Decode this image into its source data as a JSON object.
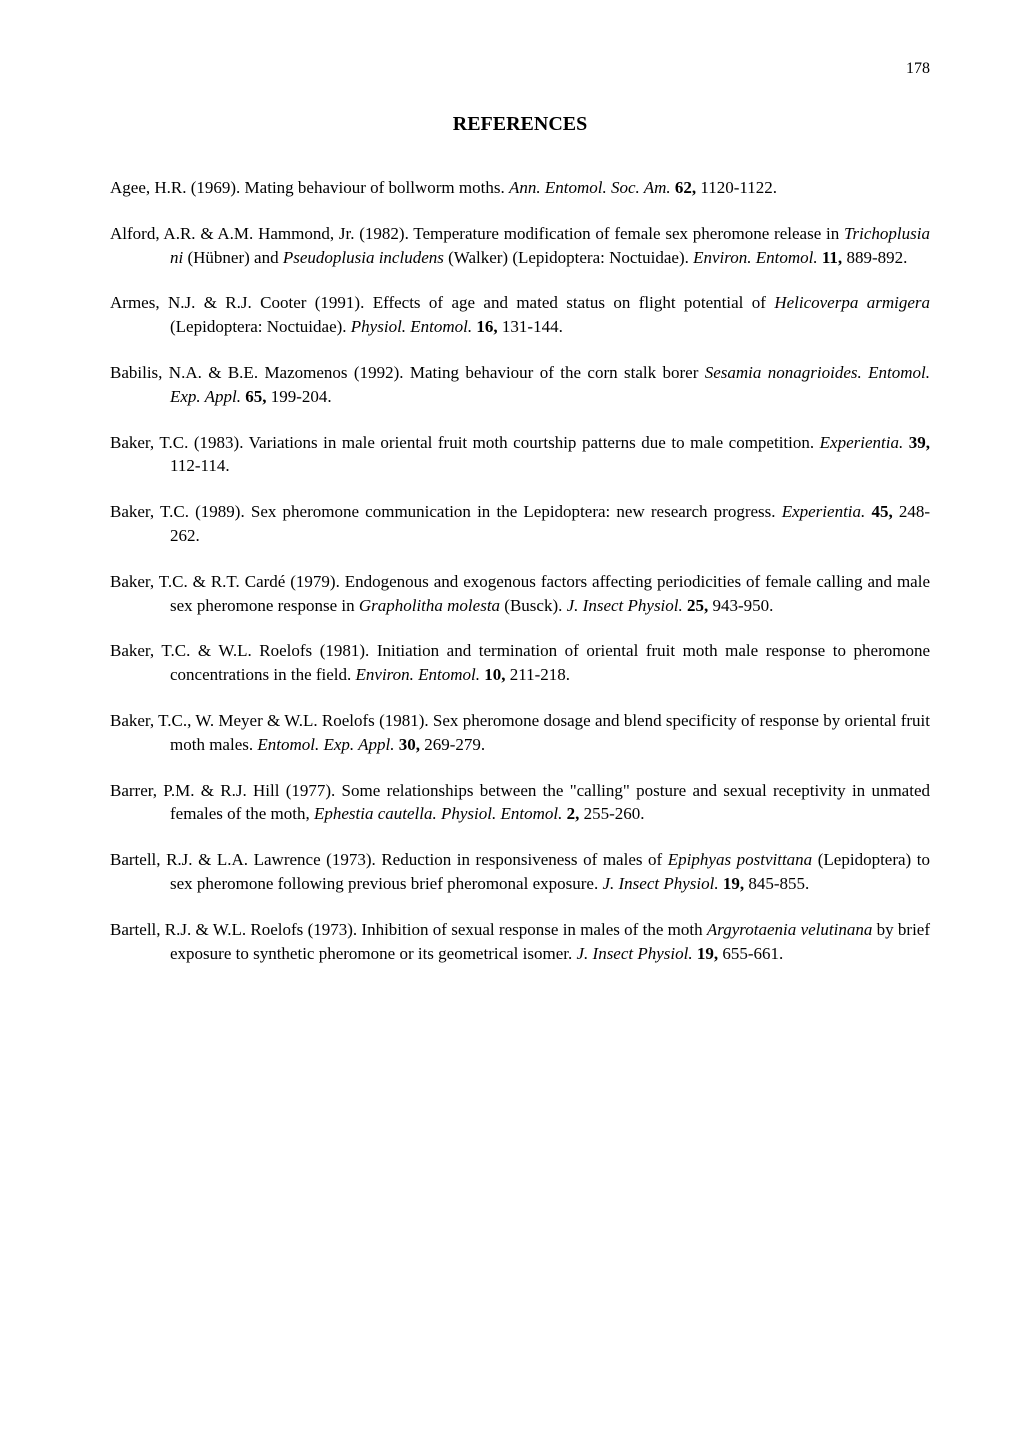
{
  "page_number": "178",
  "title": "REFERENCES",
  "references": [
    {
      "segments": [
        {
          "text": "Agee, H.R. (1969).  Mating  behaviour   of bollworm moths.  ",
          "style": ""
        },
        {
          "text": "Ann. Entomol. Soc. Am.",
          "style": "italic"
        },
        {
          "text": " ",
          "style": ""
        },
        {
          "text": "62,",
          "style": "bold"
        },
        {
          "text": " 1120-1122.",
          "style": ""
        }
      ]
    },
    {
      "segments": [
        {
          "text": "Alford, A.R. & A.M. Hammond, Jr. (1982).   Temperature   modification of female sex pheromone release in  ",
          "style": ""
        },
        {
          "text": "Trichoplusia  ni",
          "style": "italic"
        },
        {
          "text": " (Hübner)  and   ",
          "style": ""
        },
        {
          "text": "Pseudoplusia includens",
          "style": "italic"
        },
        {
          "text": " (Walker) (Lepidoptera: Noctuidae).  ",
          "style": ""
        },
        {
          "text": "Environ. Entomol.",
          "style": "italic"
        },
        {
          "text": " ",
          "style": ""
        },
        {
          "text": "11,",
          "style": "bold"
        },
        {
          "text": " 889-892.",
          "style": ""
        }
      ]
    },
    {
      "segments": [
        {
          "text": "Armes, N.J. & R.J. Cooter (1991).   Effects  of age and mated status on flight potential of ",
          "style": ""
        },
        {
          "text": "Helicoverpa armigera",
          "style": "italic"
        },
        {
          "text": " (Lepidoptera:  Noctuidae).   ",
          "style": ""
        },
        {
          "text": "Physiol. Entomol.",
          "style": "italic"
        },
        {
          "text": " ",
          "style": ""
        },
        {
          "text": "16,",
          "style": "bold"
        },
        {
          "text": " 131-144.",
          "style": ""
        }
      ]
    },
    {
      "segments": [
        {
          "text": "Babilis,  N.A.  &  B.E.  Mazomenos  (1992).  Mating behaviour of the corn stalk borer ",
          "style": ""
        },
        {
          "text": "Sesamia nonagrioides.  Entomol. Exp. Appl.",
          "style": "italic"
        },
        {
          "text": " ",
          "style": ""
        },
        {
          "text": "65,",
          "style": "bold"
        },
        {
          "text": " 199-204.",
          "style": ""
        }
      ]
    },
    {
      "segments": [
        {
          "text": "Baker, T.C. (1983).  Variations  in  male  oriental  fruit moth courtship patterns due to male competition.  ",
          "style": ""
        },
        {
          "text": "Experientia.",
          "style": "italic"
        },
        {
          "text": " ",
          "style": ""
        },
        {
          "text": "39,",
          "style": "bold"
        },
        {
          "text": " 112-114.",
          "style": ""
        }
      ]
    },
    {
      "segments": [
        {
          "text": "Baker, T.C. (1989).  Sex pheromone communication  in the Lepidoptera: new research progress.  ",
          "style": ""
        },
        {
          "text": "Experientia.",
          "style": "italic"
        },
        {
          "text": " ",
          "style": ""
        },
        {
          "text": "45,",
          "style": "bold"
        },
        {
          "text": " 248-262.",
          "style": ""
        }
      ]
    },
    {
      "segments": [
        {
          "text": "Baker,  T.C.  &  R.T.  Cardé  (1979).   Endogenous  and  exogenous  factors  affecting periodicities of female calling and male sex pheromone response in ",
          "style": ""
        },
        {
          "text": "Grapholitha molesta",
          "style": "italic"
        },
        {
          "text": " (Busck). ",
          "style": ""
        },
        {
          "text": "J. Insect Physiol.",
          "style": "italic"
        },
        {
          "text": " ",
          "style": ""
        },
        {
          "text": "25,",
          "style": "bold"
        },
        {
          "text": " 943-950.",
          "style": ""
        }
      ]
    },
    {
      "segments": [
        {
          "text": "Baker, T.C.  &  W.L. Roelofs  (1981).  Initiation and termination of oriental fruit moth male response to pheromone concentrations in the field.  ",
          "style": ""
        },
        {
          "text": "Environ. Entomol.",
          "style": "italic"
        },
        {
          "text": " ",
          "style": ""
        },
        {
          "text": "10,",
          "style": "bold"
        },
        {
          "text": " 211-218.",
          "style": ""
        }
      ]
    },
    {
      "segments": [
        {
          "text": "Baker, T.C., W. Meyer  &  W.L. Roelofs  (1981).   Sex  pheromone  dosage and blend specificity of response by oriental fruit moth  males.   ",
          "style": ""
        },
        {
          "text": "Entomol.  Exp.  Appl.",
          "style": "italic"
        },
        {
          "text": " ",
          "style": ""
        },
        {
          "text": "30,",
          "style": "bold"
        },
        {
          "text": " 269-279.",
          "style": ""
        }
      ]
    },
    {
      "segments": [
        {
          "text": "Barrer, P.M. & R.J. Hill (1977).  Some relationships between the \"calling\" posture and sexual receptivity in unmated females of the  moth, ",
          "style": ""
        },
        {
          "text": "Ephestia cautella.  Physiol. Entomol.",
          "style": "italic"
        },
        {
          "text": " ",
          "style": ""
        },
        {
          "text": "2,",
          "style": "bold"
        },
        {
          "text": " 255-260.",
          "style": ""
        }
      ]
    },
    {
      "segments": [
        {
          "text": "Bartell,  R.J.  &  L.A. Lawrence  (1973).   Reduction  in  responsiveness  of  males   of ",
          "style": ""
        },
        {
          "text": "Epiphyas postvittana",
          "style": "italic"
        },
        {
          "text": " (Lepidoptera) to sex pheromone following previous brief pheromonal exposure.  ",
          "style": ""
        },
        {
          "text": "J. Insect Physiol.",
          "style": "italic"
        },
        {
          "text": " ",
          "style": ""
        },
        {
          "text": "19,",
          "style": "bold"
        },
        {
          "text": " 845-855.",
          "style": ""
        }
      ]
    },
    {
      "segments": [
        {
          "text": "Bartell, R.J. &  W.L. Roelofs  (1973).   Inhibition  of  sexual  response   in males of the moth ",
          "style": ""
        },
        {
          "text": "Argyrotaenia velutinana",
          "style": "italic"
        },
        {
          "text": " by brief exposure to synthetic  pheromone or its geometrical isomer.  ",
          "style": ""
        },
        {
          "text": "J. Insect Physiol.",
          "style": "italic"
        },
        {
          "text": " ",
          "style": ""
        },
        {
          "text": "19,",
          "style": "bold"
        },
        {
          "text": " 655-661.",
          "style": ""
        }
      ]
    }
  ]
}
